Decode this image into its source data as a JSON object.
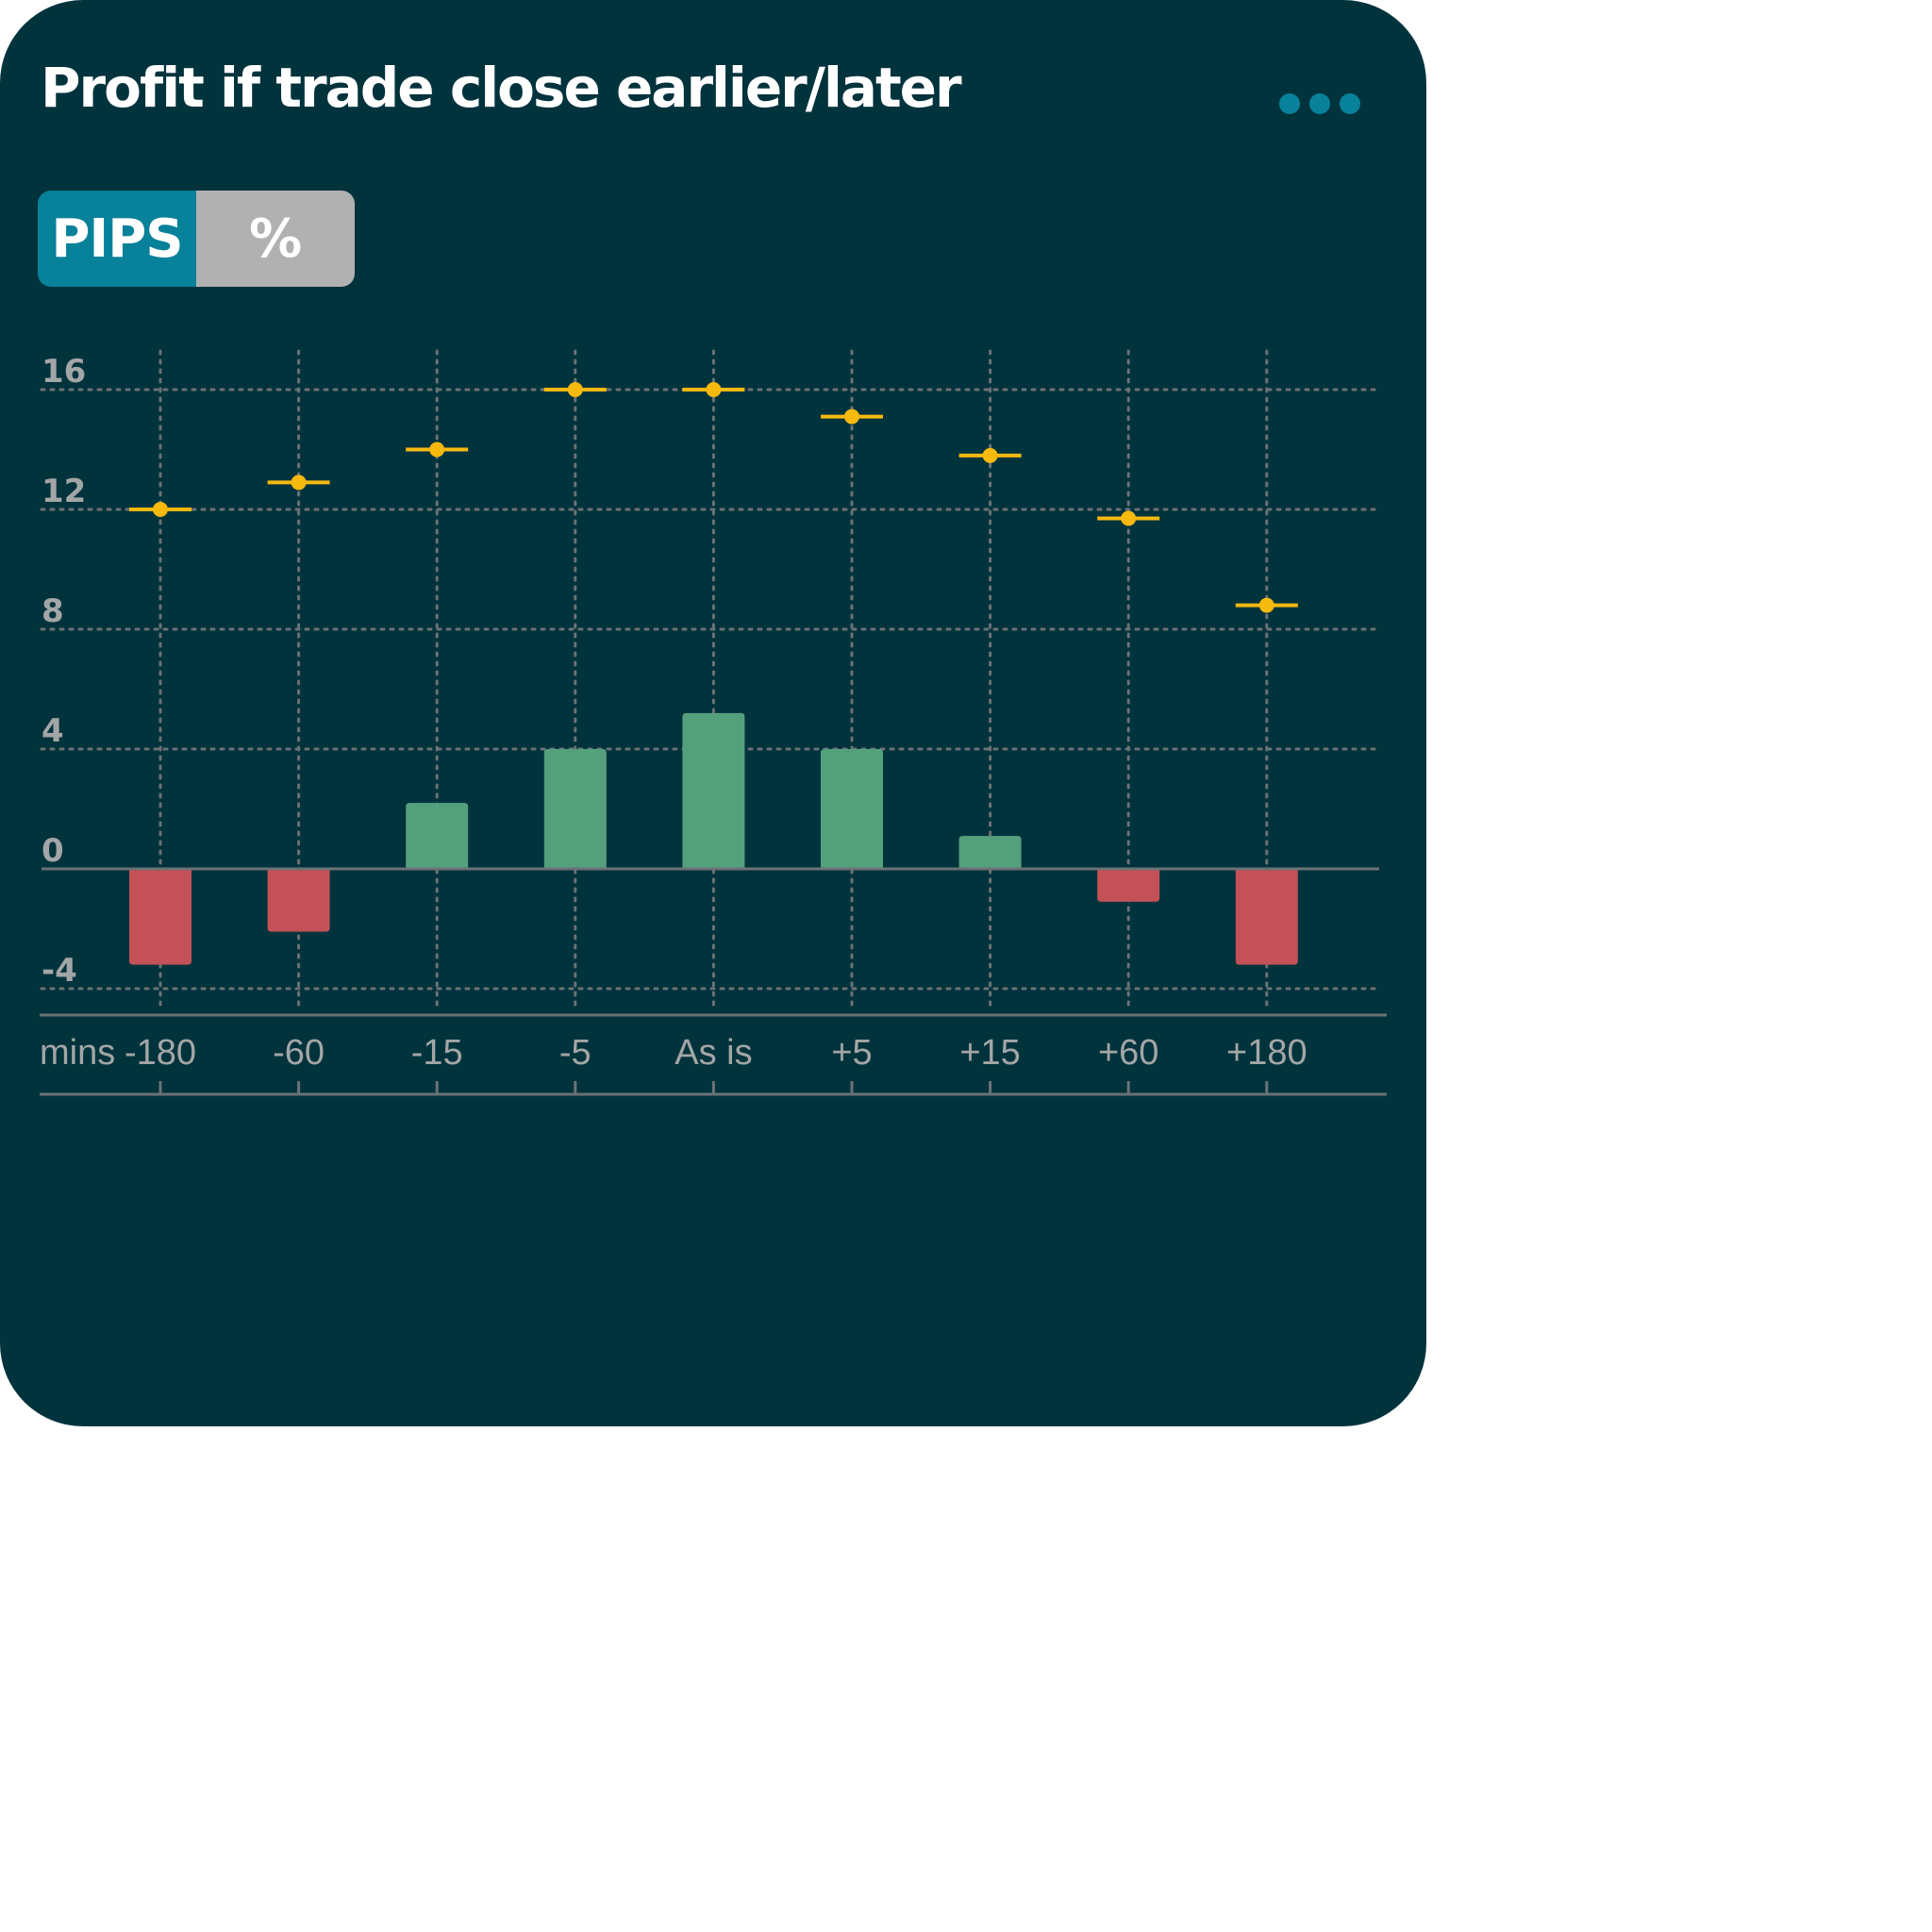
{
  "card": {
    "title": "Profit if trade close earlier/later",
    "more_icon": "more-horizontal-icon"
  },
  "toggle": {
    "pips_label": "PIPS",
    "percent_label": "%",
    "selected": "PIPS"
  },
  "colors": {
    "background": "#01333d",
    "positive": "#55a07c",
    "negative": "#c35157",
    "marker": "#f6b90e",
    "accent": "#08819a",
    "grid": "#6b7275",
    "axis_text": "#a3a6a6"
  },
  "chart_data": {
    "type": "bar",
    "x_unit_label": "mins",
    "categories": [
      "-180",
      "-60",
      "-15",
      "-5",
      "As is",
      "+5",
      "+15",
      "+60",
      "+180"
    ],
    "series": [
      {
        "type": "bar",
        "values": [
          -3.2,
          -2.1,
          2.2,
          4.0,
          5.2,
          4.0,
          1.1,
          -1.1,
          -3.2
        ]
      },
      {
        "type": "marker",
        "values": [
          12.0,
          12.9,
          14.0,
          16.0,
          16.0,
          15.1,
          13.8,
          11.7,
          8.8
        ]
      }
    ],
    "yticks": [
      16,
      12,
      8,
      4,
      0,
      -4
    ],
    "ylim": [
      -4,
      16
    ],
    "grid": true
  }
}
